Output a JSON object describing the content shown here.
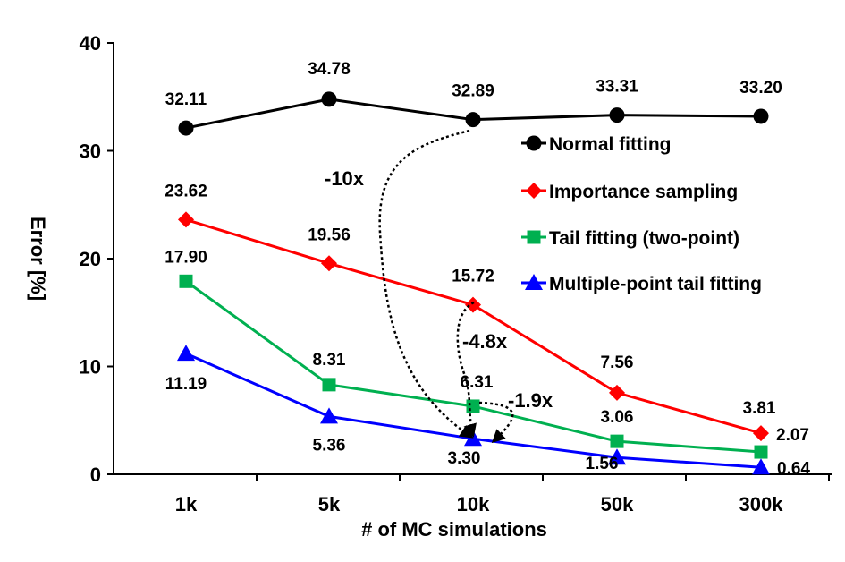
{
  "chart_data": {
    "type": "line",
    "categories": [
      "1k",
      "5k",
      "10k",
      "50k",
      "300k"
    ],
    "xlabel": "# of MC simulations",
    "ylabel": "Error [%]",
    "ylim": [
      0,
      40
    ],
    "yticks": [
      0,
      10,
      20,
      30,
      40
    ],
    "series": [
      {
        "name": "Normal fitting",
        "color": "#000000",
        "marker": "circle",
        "values": [
          32.11,
          34.78,
          32.89,
          33.31,
          33.2
        ],
        "labels": [
          "32.11",
          "34.78",
          "32.89",
          "33.31",
          "33.20"
        ]
      },
      {
        "name": "Importance sampling",
        "color": "#ff0000",
        "marker": "diamond",
        "values": [
          23.62,
          19.56,
          15.72,
          7.56,
          3.81
        ],
        "labels": [
          "23.62",
          "19.56",
          "15.72",
          "7.56",
          "3.81"
        ]
      },
      {
        "name": "Tail fitting (two-point)",
        "color": "#00b050",
        "marker": "square",
        "values": [
          17.9,
          8.31,
          6.31,
          3.06,
          2.07
        ],
        "labels": [
          "17.90",
          "8.31",
          "6.31",
          "3.06",
          "2.07"
        ]
      },
      {
        "name": "Multiple-point tail fitting",
        "color": "#0000ff",
        "marker": "triangle",
        "values": [
          11.19,
          5.36,
          3.3,
          1.56,
          0.64
        ],
        "labels": [
          "11.19",
          "5.36",
          "3.30",
          "1.56",
          "0.64"
        ]
      }
    ],
    "legend": "right",
    "annotations": [
      "-10x",
      "-4.8x",
      "-1.9x"
    ]
  }
}
